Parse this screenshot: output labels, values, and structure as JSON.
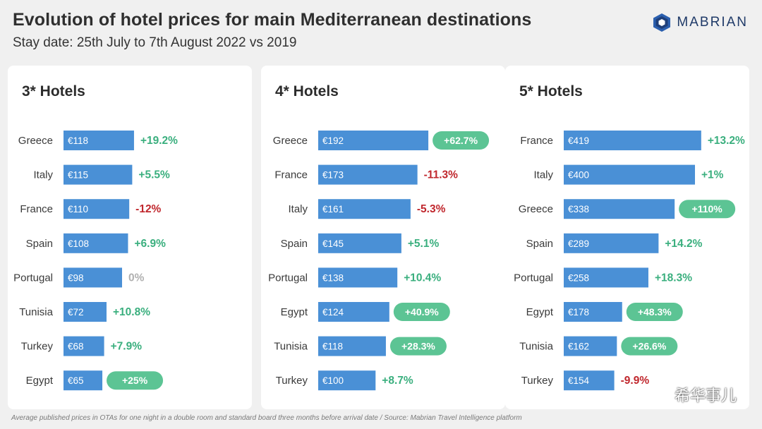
{
  "header": {
    "title": "Evolution of hotel prices for main Mediterranean destinations",
    "subtitle": "Stay date: 25th July to 7th August 2022 vs 2019",
    "logo_text": "MABRIAN"
  },
  "footnote": "Average published prices in OTAs for one night in a double room and standard board three months before arrival date / Source: Mabrian Travel Intelligence platform",
  "watermark": "希华事儿",
  "colors": {
    "bar": "#4a90d6",
    "positive": "#3aaf7e",
    "negative": "#c0272d",
    "neutral": "#b0b0b0",
    "pill": "#5cc494",
    "pill_text": "#ffffff"
  },
  "chart_data": [
    {
      "type": "bar",
      "orientation": "horizontal",
      "title": "3* Hotels",
      "categories": [
        "Greece",
        "Italy",
        "France",
        "Spain",
        "Portugal",
        "Tunisia",
        "Turkey",
        "Egypt"
      ],
      "values": [
        118,
        115,
        110,
        108,
        98,
        72,
        68,
        65
      ],
      "value_labels": [
        "€118",
        "€115",
        "€110",
        "€108",
        "€98",
        "€72",
        "€68",
        "€65"
      ],
      "changes": [
        "+19.2%",
        "+5.5%",
        "-12%",
        "+6.9%",
        "0%",
        "+10.8%",
        "+7.9%",
        "+25%"
      ],
      "highlighted": [
        false,
        false,
        false,
        false,
        false,
        false,
        false,
        true
      ]
    },
    {
      "type": "bar",
      "orientation": "horizontal",
      "title": "4* Hotels",
      "categories": [
        "Greece",
        "France",
        "Italy",
        "Spain",
        "Portugal",
        "Egypt",
        "Tunisia",
        "Turkey"
      ],
      "values": [
        192,
        173,
        161,
        145,
        138,
        124,
        118,
        100
      ],
      "value_labels": [
        "€192",
        "€173",
        "€161",
        "€145",
        "€138",
        "€124",
        "€118",
        "€100"
      ],
      "changes": [
        "+62.7%",
        "-11.3%",
        "-5.3%",
        "+5.1%",
        "+10.4%",
        "+40.9%",
        "+28.3%",
        "+8.7%"
      ],
      "highlighted": [
        true,
        false,
        false,
        false,
        false,
        true,
        true,
        false
      ]
    },
    {
      "type": "bar",
      "orientation": "horizontal",
      "title": "5* Hotels",
      "categories": [
        "France",
        "Italy",
        "Greece",
        "Spain",
        "Portugal",
        "Egypt",
        "Tunisia",
        "Turkey"
      ],
      "values": [
        419,
        400,
        338,
        289,
        258,
        178,
        162,
        154
      ],
      "value_labels": [
        "€419",
        "€400",
        "€338",
        "€289",
        "€258",
        "€178",
        "€162",
        "€154"
      ],
      "changes": [
        "+13.2%",
        "+1%",
        "+110%",
        "+14.2%",
        "+18.3%",
        "+48.3%",
        "+26.6%",
        "-9.9%"
      ],
      "highlighted": [
        false,
        false,
        true,
        false,
        false,
        true,
        true,
        false
      ]
    }
  ]
}
